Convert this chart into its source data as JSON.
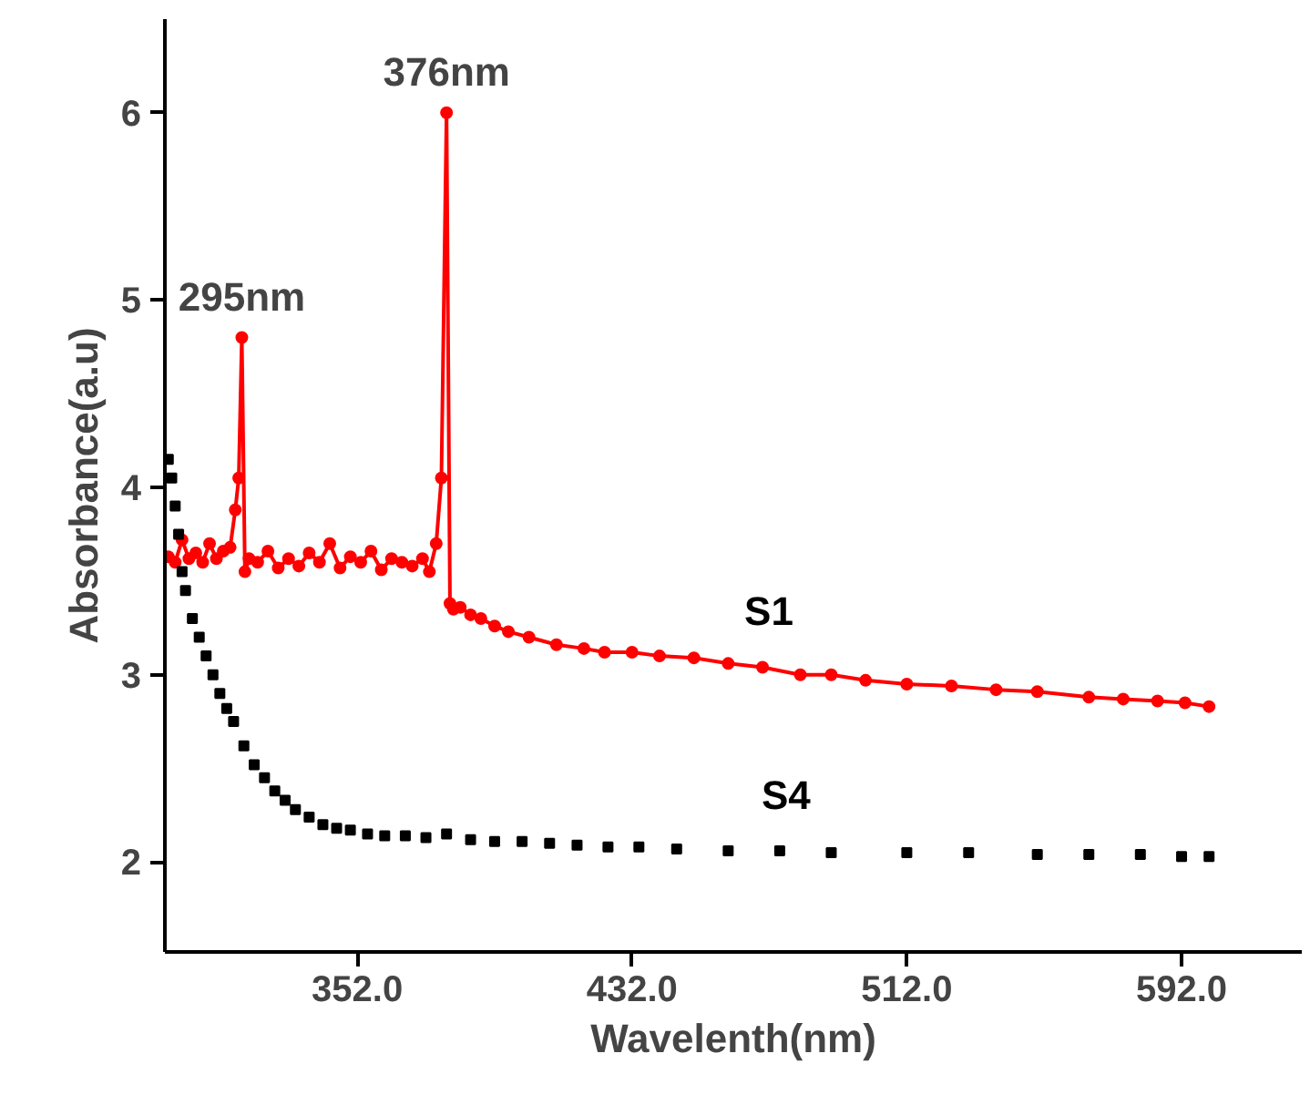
{
  "chart_data": {
    "type": "line",
    "xlabel": "Wavelenth(nm)",
    "ylabel": "Absorbance(a.u)",
    "xlim": [
      296,
      627
    ],
    "ylim": [
      1.52,
      6.5
    ],
    "xticks": [
      {
        "value": 352,
        "label": "352.0"
      },
      {
        "value": 432,
        "label": "432.0"
      },
      {
        "value": 512,
        "label": "512.0"
      },
      {
        "value": 592,
        "label": "592.0"
      }
    ],
    "yticks": [
      2,
      3,
      4,
      5,
      6
    ],
    "grid": false,
    "annotations": [
      {
        "text": "295nm",
        "x": 318.4,
        "y": 4.8
      },
      {
        "text": "376nm",
        "x": 378,
        "y": 6.0
      }
    ],
    "series": [
      {
        "name": "S1",
        "marker": "circle",
        "color": "#ff0000",
        "x": [
          297,
          299,
          301,
          303,
          305,
          307,
          309,
          311,
          313,
          315,
          316.5,
          317.5,
          318.4,
          319.3,
          320.5,
          323,
          326,
          329,
          332,
          335,
          338,
          341,
          344,
          347,
          350,
          353,
          356,
          359,
          362,
          365,
          368,
          371,
          373,
          375,
          376.5,
          378,
          379,
          380,
          382,
          385,
          388,
          392,
          396,
          402,
          410,
          418,
          424,
          432,
          440,
          450,
          460,
          470,
          481,
          490,
          500,
          512,
          525,
          538,
          550,
          565,
          575,
          585,
          593,
          600
        ],
        "values": [
          3.63,
          3.6,
          3.72,
          3.62,
          3.65,
          3.6,
          3.7,
          3.62,
          3.66,
          3.68,
          3.88,
          4.05,
          4.8,
          3.55,
          3.62,
          3.6,
          3.66,
          3.57,
          3.62,
          3.58,
          3.65,
          3.6,
          3.7,
          3.57,
          3.63,
          3.6,
          3.66,
          3.56,
          3.62,
          3.6,
          3.58,
          3.62,
          3.55,
          3.7,
          4.05,
          6.0,
          3.38,
          3.35,
          3.36,
          3.32,
          3.3,
          3.26,
          3.23,
          3.2,
          3.16,
          3.14,
          3.12,
          3.12,
          3.1,
          3.09,
          3.06,
          3.04,
          3.0,
          3.0,
          2.97,
          2.95,
          2.94,
          2.92,
          2.91,
          2.88,
          2.87,
          2.86,
          2.85,
          2.83
        ]
      },
      {
        "name": "S4",
        "type": "scatter",
        "marker": "square",
        "color": "#000000",
        "x": [
          297,
          298,
          299,
          300,
          301,
          302,
          304,
          306,
          308,
          310,
          312,
          314,
          316,
          319,
          322,
          325,
          328,
          331,
          334,
          338,
          342,
          346,
          350,
          355,
          360,
          366,
          372,
          378,
          385,
          392,
          400,
          408,
          416,
          425,
          434,
          445,
          460,
          475,
          490,
          512,
          530,
          550,
          565,
          580,
          592,
          600
        ],
        "values": [
          4.15,
          4.05,
          3.9,
          3.75,
          3.55,
          3.45,
          3.3,
          3.2,
          3.1,
          3.0,
          2.9,
          2.82,
          2.75,
          2.62,
          2.52,
          2.45,
          2.38,
          2.33,
          2.28,
          2.24,
          2.2,
          2.18,
          2.17,
          2.15,
          2.14,
          2.14,
          2.13,
          2.15,
          2.12,
          2.11,
          2.11,
          2.1,
          2.09,
          2.08,
          2.08,
          2.07,
          2.06,
          2.06,
          2.05,
          2.05,
          2.05,
          2.04,
          2.04,
          2.04,
          2.03,
          2.03
        ]
      }
    ]
  }
}
